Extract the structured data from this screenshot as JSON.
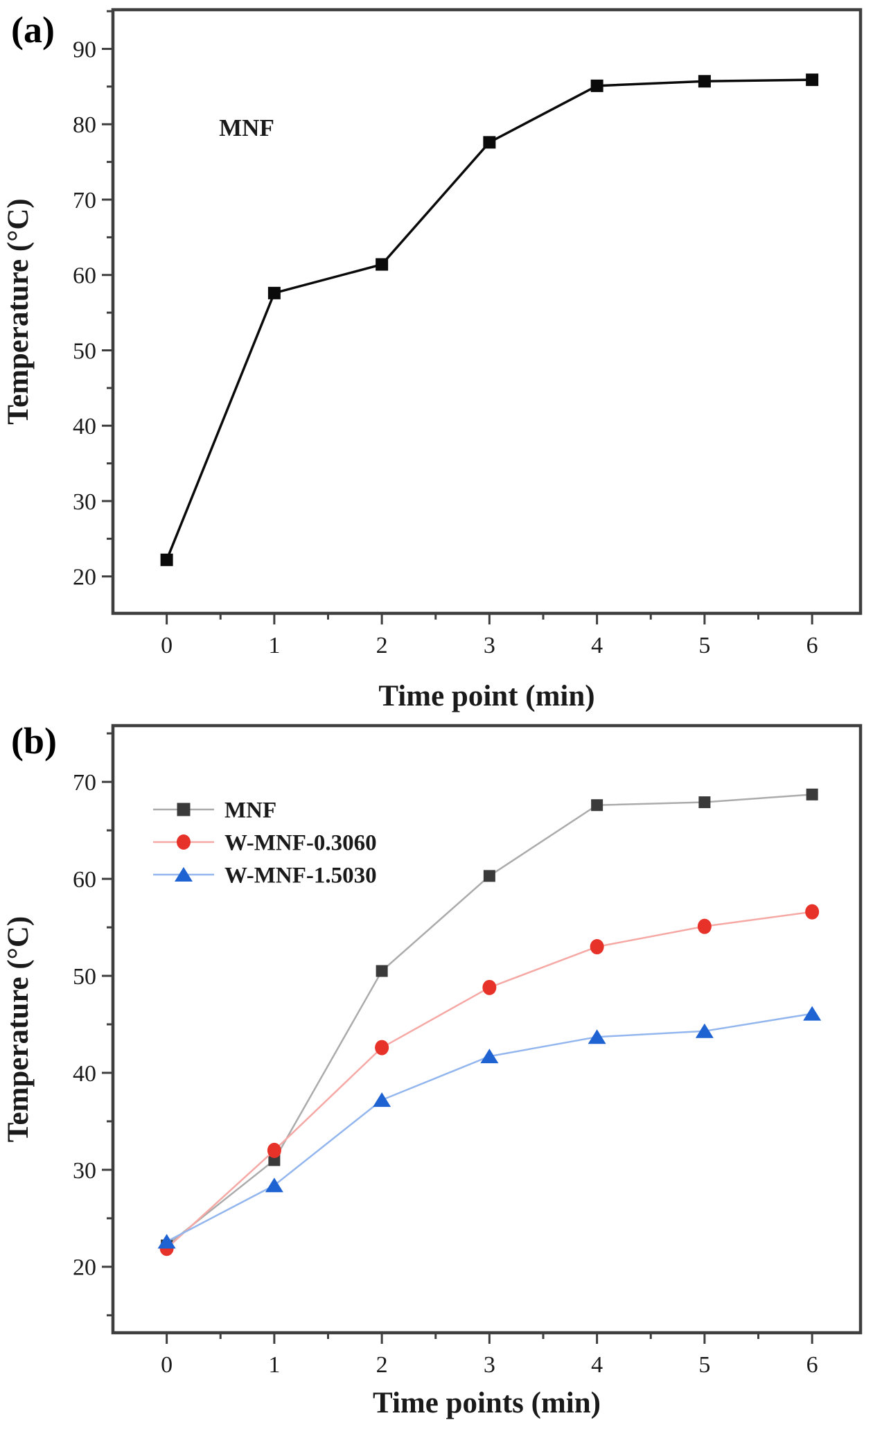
{
  "figure": {
    "background": "#ffffff",
    "panels": [
      {
        "label": "(a)",
        "chart_data": {
          "type": "line",
          "title": "",
          "xlabel": "Time point (min)",
          "ylabel": "Temperature (°C)",
          "annotation": "MNF",
          "x": [
            0,
            1,
            2,
            3,
            4,
            5,
            6
          ],
          "x_ticks": [
            0,
            1,
            2,
            3,
            4,
            5,
            6
          ],
          "y_ticks": [
            20,
            30,
            40,
            50,
            60,
            70,
            80,
            90
          ],
          "xlim": [
            -0.5,
            6.45
          ],
          "ylim": [
            15.1,
            95.2
          ],
          "grid": false,
          "legend": false,
          "axis_color": "#3e3e3e",
          "tick_label_color": "#1a1a1a",
          "series": [
            {
              "name": "MNF",
              "marker": "square",
              "marker_color": "#0a0a0a",
              "line_color": "#0a0a0a",
              "values": [
                22.2,
                57.6,
                61.4,
                77.6,
                85.1,
                85.7,
                85.9
              ]
            }
          ]
        }
      },
      {
        "label": "(b)",
        "chart_data": {
          "type": "line",
          "title": "",
          "xlabel": "Time points (min)",
          "ylabel": "Temperature (°C)",
          "annotation": "",
          "x": [
            0,
            1,
            2,
            3,
            4,
            5,
            6
          ],
          "x_ticks": [
            0,
            1,
            2,
            3,
            4,
            5,
            6
          ],
          "y_ticks": [
            20,
            30,
            40,
            50,
            60,
            70
          ],
          "xlim": [
            -0.5,
            6.45
          ],
          "ylim": [
            13.2,
            75.8
          ],
          "grid": false,
          "legend": true,
          "legend_position": "top-left",
          "axis_color": "#3e3e3e",
          "tick_label_color": "#1a1a1a",
          "series": [
            {
              "name": "MNF",
              "marker": "square",
              "marker_color": "#3a3a3a",
              "line_color": "#ababab",
              "values": [
                22.2,
                31.0,
                50.5,
                60.3,
                67.6,
                67.9,
                68.7
              ]
            },
            {
              "name": "W-MNF-0.3060",
              "marker": "circle",
              "marker_color": "#e73229",
              "line_color": "#f5a8a4",
              "values": [
                21.9,
                32.0,
                42.6,
                48.8,
                53.0,
                55.1,
                56.6
              ]
            },
            {
              "name": "W-MNF-1.5030",
              "marker": "triangle",
              "marker_color": "#1f63d2",
              "line_color": "#93b6ee",
              "values": [
                22.6,
                28.4,
                37.2,
                41.7,
                43.7,
                44.3,
                46.1
              ]
            }
          ]
        }
      }
    ]
  }
}
